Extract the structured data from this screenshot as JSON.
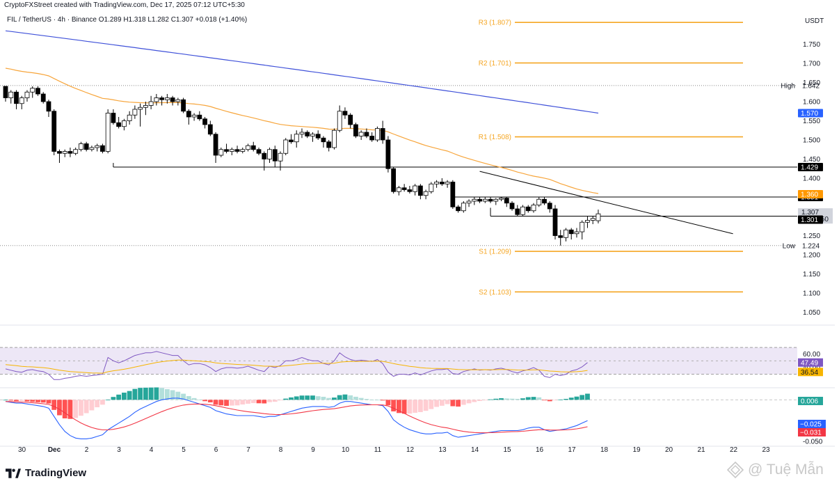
{
  "header": {
    "credit": "CryptoFXStreet created with TradingView.com, Dec 17, 2025 07:12 UTC+5:30",
    "symbol": "FIL / TetherUS · 4h · Binance",
    "ohlc": "O1.289  H1.318  L1.282  C1.307  +0.018 (+1.40%)"
  },
  "footer": {
    "brand": "TradingView",
    "watermark": "@ Tuệ Mẫn"
  },
  "colors": {
    "bull_body": "#ffffff",
    "bear_body": "#000000",
    "candle_outline": "#000000",
    "ema_fast": "#f7a53b",
    "ema_slow": "#3f51d9",
    "pivot": "#f5a623",
    "support_line": "#000000",
    "rsi": "#7e57c2",
    "rsi_ma": "#f7b500",
    "rsi_band": "#ede7f6",
    "macd_line": "#2962ff",
    "signal_line": "#f23645",
    "hist_pos_strong": "#26a69a",
    "hist_pos_weak": "#b2dfdb",
    "hist_neg_strong": "#ff5252",
    "hist_neg_weak": "#ffcdd2",
    "price_tag": "#000000",
    "ema_slow_tag": "#2962ff",
    "ema_fast_tag": "#ff9800"
  },
  "chart_data": [
    {
      "type": "candlestick",
      "title": "FIL / TetherUS · 4h · Binance",
      "quote_currency": "USDT",
      "ylim": [
        1.02,
        1.84
      ],
      "y_ticks": [
        "1.750",
        "1.700",
        "1.650",
        "1.600",
        "1.550",
        "1.500",
        "1.450",
        "1.400",
        "1.350",
        "1.300",
        "1.250",
        "1.200",
        "1.150",
        "1.100",
        "1.050"
      ],
      "x_ticks": [
        {
          "day": -1,
          "label": "30"
        },
        {
          "day": 0,
          "label": "Dec"
        },
        {
          "day": 1,
          "label": "2"
        },
        {
          "day": 2,
          "label": "3"
        },
        {
          "day": 3,
          "label": "4"
        },
        {
          "day": 4,
          "label": "5"
        },
        {
          "day": 5,
          "label": "6"
        },
        {
          "day": 6,
          "label": "7"
        },
        {
          "day": 7,
          "label": "8"
        },
        {
          "day": 8,
          "label": "9"
        },
        {
          "day": 9,
          "label": "10"
        },
        {
          "day": 10,
          "label": "11"
        },
        {
          "day": 11,
          "label": "12"
        },
        {
          "day": 12,
          "label": "13"
        },
        {
          "day": 13,
          "label": "14"
        },
        {
          "day": 14,
          "label": "15"
        },
        {
          "day": 15,
          "label": "16"
        },
        {
          "day": 16,
          "label": "17"
        },
        {
          "day": 17,
          "label": "18"
        },
        {
          "day": 18,
          "label": "19"
        },
        {
          "day": 19,
          "label": "20"
        },
        {
          "day": 20,
          "label": "21"
        },
        {
          "day": 21,
          "label": "22"
        },
        {
          "day": 22,
          "label": "23"
        }
      ],
      "candles_note": "OHLC per 4h bar, approximate, starting Nov 29 16:00",
      "candles": [
        [
          1.64,
          1.64,
          1.6,
          1.61
        ],
        [
          1.61,
          1.63,
          1.595,
          1.625
        ],
        [
          1.625,
          1.63,
          1.58,
          1.595
        ],
        [
          1.595,
          1.615,
          1.58,
          1.61
        ],
        [
          1.61,
          1.63,
          1.6,
          1.625
        ],
        [
          1.625,
          1.64,
          1.61,
          1.635
        ],
        [
          1.635,
          1.64,
          1.615,
          1.62
        ],
        [
          1.62,
          1.625,
          1.595,
          1.6
        ],
        [
          1.6,
          1.605,
          1.56,
          1.575
        ],
        [
          1.575,
          1.58,
          1.46,
          1.47
        ],
        [
          1.47,
          1.475,
          1.44,
          1.465
        ],
        [
          1.465,
          1.475,
          1.455,
          1.47
        ],
        [
          1.47,
          1.48,
          1.455,
          1.465
        ],
        [
          1.465,
          1.48,
          1.46,
          1.475
        ],
        [
          1.475,
          1.495,
          1.47,
          1.49
        ],
        [
          1.49,
          1.495,
          1.47,
          1.475
        ],
        [
          1.475,
          1.485,
          1.47,
          1.48
        ],
        [
          1.48,
          1.49,
          1.47,
          1.485
        ],
        [
          1.485,
          1.49,
          1.465,
          1.47
        ],
        [
          1.47,
          1.58,
          1.465,
          1.57
        ],
        [
          1.57,
          1.58,
          1.54,
          1.545
        ],
        [
          1.545,
          1.56,
          1.53,
          1.535
        ],
        [
          1.535,
          1.555,
          1.525,
          1.55
        ],
        [
          1.55,
          1.575,
          1.54,
          1.565
        ],
        [
          1.565,
          1.59,
          1.555,
          1.58
        ],
        [
          1.58,
          1.595,
          1.535,
          1.585
        ],
        [
          1.585,
          1.6,
          1.565,
          1.59
        ],
        [
          1.59,
          1.615,
          1.58,
          1.6
        ],
        [
          1.6,
          1.62,
          1.59,
          1.61
        ],
        [
          1.61,
          1.615,
          1.59,
          1.605
        ],
        [
          1.605,
          1.62,
          1.595,
          1.61
        ],
        [
          1.61,
          1.615,
          1.59,
          1.6
        ],
        [
          1.6,
          1.61,
          1.59,
          1.605
        ],
        [
          1.605,
          1.61,
          1.57,
          1.575
        ],
        [
          1.575,
          1.58,
          1.54,
          1.56
        ],
        [
          1.56,
          1.57,
          1.55,
          1.565
        ],
        [
          1.565,
          1.575,
          1.55,
          1.555
        ],
        [
          1.555,
          1.56,
          1.53,
          1.54
        ],
        [
          1.54,
          1.55,
          1.51,
          1.515
        ],
        [
          1.515,
          1.52,
          1.44,
          1.46
        ],
        [
          1.46,
          1.48,
          1.455,
          1.475
        ],
        [
          1.475,
          1.49,
          1.465,
          1.47
        ],
        [
          1.47,
          1.48,
          1.46,
          1.475
        ],
        [
          1.475,
          1.485,
          1.465,
          1.47
        ],
        [
          1.47,
          1.48,
          1.465,
          1.475
        ],
        [
          1.475,
          1.49,
          1.47,
          1.485
        ],
        [
          1.485,
          1.495,
          1.47,
          1.475
        ],
        [
          1.475,
          1.48,
          1.46,
          1.465
        ],
        [
          1.465,
          1.47,
          1.42,
          1.45
        ],
        [
          1.45,
          1.48,
          1.44,
          1.475
        ],
        [
          1.475,
          1.485,
          1.43,
          1.445
        ],
        [
          1.445,
          1.47,
          1.42,
          1.465
        ],
        [
          1.465,
          1.505,
          1.46,
          1.5
        ],
        [
          1.5,
          1.515,
          1.49,
          1.495
        ],
        [
          1.495,
          1.525,
          1.48,
          1.515
        ],
        [
          1.515,
          1.53,
          1.505,
          1.52
        ],
        [
          1.52,
          1.525,
          1.505,
          1.51
        ],
        [
          1.51,
          1.52,
          1.495,
          1.515
        ],
        [
          1.515,
          1.525,
          1.5,
          1.505
        ],
        [
          1.505,
          1.51,
          1.48,
          1.495
        ],
        [
          1.495,
          1.5,
          1.47,
          1.48
        ],
        [
          1.48,
          1.53,
          1.475,
          1.525
        ],
        [
          1.525,
          1.59,
          1.52,
          1.575
        ],
        [
          1.575,
          1.585,
          1.555,
          1.565
        ],
        [
          1.565,
          1.57,
          1.53,
          1.54
        ],
        [
          1.54,
          1.545,
          1.505,
          1.51
        ],
        [
          1.51,
          1.525,
          1.5,
          1.52
        ],
        [
          1.52,
          1.53,
          1.505,
          1.51
        ],
        [
          1.51,
          1.52,
          1.495,
          1.5
        ],
        [
          1.5,
          1.535,
          1.495,
          1.53
        ],
        [
          1.53,
          1.55,
          1.49,
          1.5
        ],
        [
          1.5,
          1.51,
          1.415,
          1.425
        ],
        [
          1.425,
          1.43,
          1.36,
          1.365
        ],
        [
          1.365,
          1.38,
          1.355,
          1.375
        ],
        [
          1.375,
          1.385,
          1.365,
          1.37
        ],
        [
          1.37,
          1.38,
          1.36,
          1.365
        ],
        [
          1.365,
          1.385,
          1.355,
          1.38
        ],
        [
          1.38,
          1.385,
          1.345,
          1.355
        ],
        [
          1.355,
          1.37,
          1.345,
          1.365
        ],
        [
          1.365,
          1.39,
          1.36,
          1.385
        ],
        [
          1.385,
          1.395,
          1.375,
          1.39
        ],
        [
          1.39,
          1.4,
          1.38,
          1.385
        ],
        [
          1.385,
          1.395,
          1.375,
          1.39
        ],
        [
          1.39,
          1.395,
          1.32,
          1.325
        ],
        [
          1.325,
          1.33,
          1.31,
          1.315
        ],
        [
          1.315,
          1.34,
          1.31,
          1.335
        ],
        [
          1.335,
          1.345,
          1.325,
          1.34
        ],
        [
          1.34,
          1.35,
          1.33,
          1.345
        ],
        [
          1.345,
          1.35,
          1.335,
          1.34
        ],
        [
          1.34,
          1.35,
          1.335,
          1.345
        ],
        [
          1.345,
          1.35,
          1.335,
          1.34
        ],
        [
          1.34,
          1.348,
          1.33,
          1.345
        ],
        [
          1.345,
          1.35,
          1.34,
          1.348
        ],
        [
          1.348,
          1.35,
          1.325,
          1.335
        ],
        [
          1.335,
          1.34,
          1.315,
          1.32
        ],
        [
          1.32,
          1.33,
          1.3,
          1.305
        ],
        [
          1.305,
          1.33,
          1.3,
          1.325
        ],
        [
          1.325,
          1.33,
          1.31,
          1.315
        ],
        [
          1.315,
          1.335,
          1.31,
          1.33
        ],
        [
          1.33,
          1.35,
          1.325,
          1.345
        ],
        [
          1.345,
          1.35,
          1.33,
          1.335
        ],
        [
          1.335,
          1.34,
          1.31,
          1.32
        ],
        [
          1.32,
          1.33,
          1.24,
          1.25
        ],
        [
          1.25,
          1.265,
          1.224,
          1.245
        ],
        [
          1.245,
          1.27,
          1.235,
          1.265
        ],
        [
          1.265,
          1.27,
          1.24,
          1.255
        ],
        [
          1.255,
          1.27,
          1.245,
          1.26
        ],
        [
          1.26,
          1.29,
          1.24,
          1.285
        ],
        [
          1.285,
          1.3,
          1.27,
          1.29
        ],
        [
          1.29,
          1.3,
          1.28,
          1.295
        ],
        [
          1.289,
          1.318,
          1.282,
          1.307
        ]
      ],
      "ema50": {
        "label": "1.360",
        "first": 1.69,
        "last": 1.36
      },
      "ema200": {
        "label": "1.570",
        "first": 1.785,
        "last": 1.57
      },
      "pivots": [
        {
          "label": "R3 (1.807)",
          "value": 1.807
        },
        {
          "label": "R2 (1.701)",
          "value": 1.701
        },
        {
          "label": "R1 (1.508)",
          "value": 1.508
        },
        {
          "label": "S1 (1.209)",
          "value": 1.209
        },
        {
          "label": "S2 (1.103)",
          "value": 1.103
        }
      ],
      "horizontal_levels": [
        {
          "value": 1.429,
          "label": "1.429",
          "start_bar": 20
        },
        {
          "value": 1.351,
          "label": "1.351",
          "start_bar": 83
        }
      ],
      "extra_level": {
        "value": 1.301,
        "label": "1.301",
        "start_bar": 90
      },
      "trendline": {
        "start_bar": 88,
        "start_value": 1.418,
        "end_bar": 135,
        "end_value": 1.255
      },
      "high": {
        "label": "High",
        "value": 1.642,
        "text": "1.642"
      },
      "low": {
        "label": "Low",
        "value": 1.224,
        "text": "1.224"
      },
      "last_price": {
        "label": "1.307",
        "countdown": "02:17:50"
      }
    },
    {
      "type": "line",
      "title": "RSI",
      "ylim": [
        14,
        95
      ],
      "band": [
        30,
        70
      ],
      "y_ticks": [
        "60.00",
        "40.00"
      ],
      "rsi_label": "47.49",
      "rsi_ma_label": "36.54",
      "rsi_values": [
        38,
        36,
        34,
        33,
        36,
        37,
        35,
        34,
        30,
        22,
        22,
        24,
        25,
        27,
        28,
        27,
        28,
        29,
        30,
        55,
        50,
        47,
        50,
        54,
        58,
        60,
        62,
        62,
        64,
        62,
        60,
        58,
        58,
        50,
        44,
        46,
        46,
        44,
        40,
        34,
        38,
        40,
        40,
        39,
        40,
        42,
        39,
        36,
        34,
        42,
        40,
        43,
        50,
        50,
        52,
        55,
        52,
        50,
        50,
        46,
        44,
        50,
        62,
        56,
        52,
        50,
        51,
        50,
        49,
        52,
        46,
        33,
        27,
        30,
        30,
        29,
        32,
        29,
        32,
        35,
        37,
        37,
        38,
        31,
        30,
        34,
        36,
        38,
        36,
        37,
        36,
        38,
        39,
        37,
        34,
        32,
        35,
        37,
        40,
        36,
        27,
        25,
        30,
        28,
        30,
        35,
        37,
        41,
        47.49
      ],
      "rsi_ma_values_note": "smoothed average drawn from rsi_values",
      "rsi_ma_start": 45
    },
    {
      "type": "bar",
      "title": "MACD",
      "ylim": [
        -0.055,
        0.012
      ],
      "y_ticks": [
        "0.006",
        "-0.050"
      ],
      "hist_label": "0.006",
      "macd_label": "−0.025",
      "signal_label": "−0.031",
      "macd_values": [
        -0.002,
        -0.003,
        -0.004,
        -0.004,
        -0.005,
        -0.006,
        -0.007,
        -0.008,
        -0.01,
        -0.02,
        -0.03,
        -0.038,
        -0.043,
        -0.046,
        -0.047,
        -0.047,
        -0.046,
        -0.044,
        -0.042,
        -0.036,
        -0.032,
        -0.028,
        -0.024,
        -0.02,
        -0.015,
        -0.011,
        -0.008,
        -0.005,
        -0.002,
        0.0,
        0.001,
        0.002,
        0.002,
        0.001,
        -0.001,
        -0.003,
        -0.005,
        -0.007,
        -0.009,
        -0.013,
        -0.015,
        -0.017,
        -0.018,
        -0.019,
        -0.019,
        -0.019,
        -0.019,
        -0.02,
        -0.021,
        -0.02,
        -0.02,
        -0.018,
        -0.016,
        -0.014,
        -0.012,
        -0.01,
        -0.009,
        -0.008,
        -0.008,
        -0.008,
        -0.009,
        -0.008,
        -0.004,
        -0.002,
        -0.002,
        -0.003,
        -0.004,
        -0.005,
        -0.006,
        -0.006,
        -0.007,
        -0.014,
        -0.024,
        -0.029,
        -0.033,
        -0.036,
        -0.038,
        -0.04,
        -0.041,
        -0.041,
        -0.04,
        -0.04,
        -0.039,
        -0.043,
        -0.045,
        -0.044,
        -0.043,
        -0.042,
        -0.041,
        -0.04,
        -0.039,
        -0.038,
        -0.037,
        -0.037,
        -0.037,
        -0.037,
        -0.036,
        -0.034,
        -0.033,
        -0.033,
        -0.036,
        -0.038,
        -0.037,
        -0.036,
        -0.035,
        -0.033,
        -0.031,
        -0.028,
        -0.025
      ],
      "signal_values_note": "smoothed average drawn from macd_values"
    }
  ]
}
